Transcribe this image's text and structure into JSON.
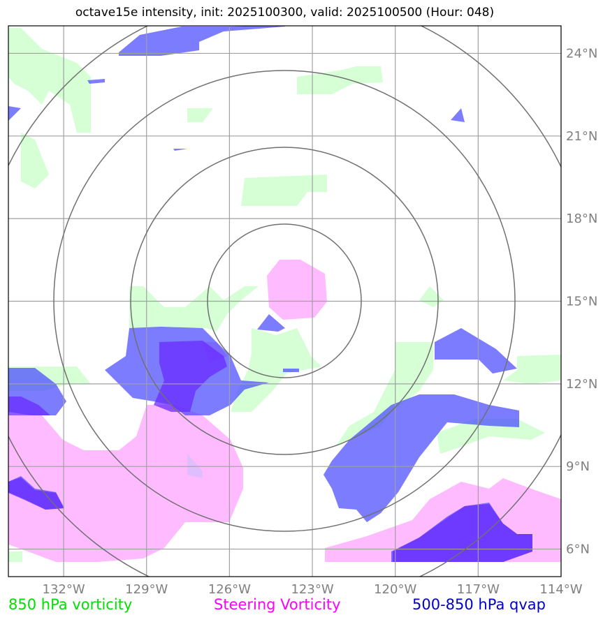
{
  "title": "octave15e intensity, init: 2025100300, valid: 2025100500 (Hour: 048)",
  "colors": {
    "vorticity_850": "#c6ffc6",
    "steering_vorticity": "#ff99ff",
    "qvap_500_850": "#3333ff",
    "grid": "#a0a0a0",
    "range_rings": "#707070"
  },
  "map": {
    "lon_range": [
      -134.0,
      -114.0
    ],
    "lat_range": [
      5.0,
      25.0
    ],
    "lon_ticks": [
      "132°W",
      "129°W",
      "126°W",
      "123°W",
      "120°W",
      "117°W",
      "114°W"
    ],
    "lat_ticks": [
      "24°N",
      "21°N",
      "18°N",
      "15°N",
      "12°N",
      "9°N",
      "6°N"
    ],
    "center": {
      "lon": -124.0,
      "lat": 15.0
    }
  },
  "legend": {
    "vorticity": "850 hPa vorticity",
    "steering": "Steering Vorticity",
    "qvap": "500-850 hPa qvap"
  }
}
